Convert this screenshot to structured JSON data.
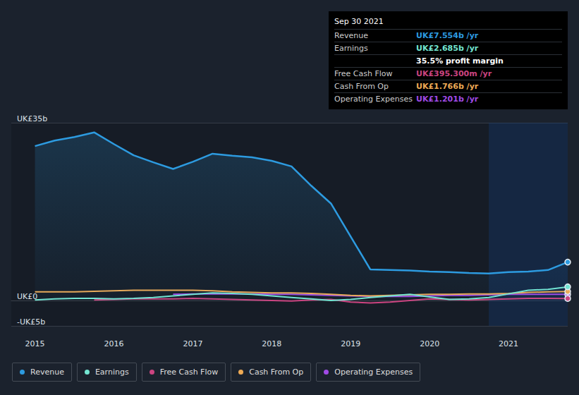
{
  "chart_data": {
    "type": "line",
    "x": [
      2015,
      2015.25,
      2015.5,
      2015.75,
      2016,
      2016.25,
      2016.5,
      2016.75,
      2017,
      2017.25,
      2017.5,
      2017.75,
      2018,
      2018.25,
      2018.5,
      2018.75,
      2019,
      2019.25,
      2019.5,
      2019.75,
      2020,
      2020.25,
      2020.5,
      2020.75,
      2021,
      2021.25,
      2021.5,
      2021.75
    ],
    "xlim": [
      2014.7,
      2021.75
    ],
    "xticks": [
      2015,
      2016,
      2017,
      2018,
      2019,
      2020,
      2021
    ],
    "ylim": [
      -5,
      35
    ],
    "yticks": [
      {
        "value": -5,
        "label": "-UK£5b"
      },
      {
        "value": 0,
        "label": "UK£0"
      },
      {
        "value": 35,
        "label": "UK£35b"
      }
    ],
    "grid": true,
    "legend": "bottom",
    "shaded_range": [
      2020.75,
      2021.75
    ],
    "series": [
      {
        "name": "Revenue",
        "type": "area",
        "color": "#2d9be0",
        "values": [
          30.4,
          31.5,
          32.2,
          33.1,
          30.8,
          28.6,
          27.2,
          25.9,
          27.3,
          28.9,
          28.5,
          28.2,
          27.5,
          26.4,
          22.6,
          19.1,
          12.6,
          6.1,
          6.0,
          5.9,
          5.7,
          5.6,
          5.4,
          5.3,
          5.6,
          5.7,
          6.0,
          7.554
        ]
      },
      {
        "name": "Earnings",
        "type": "line",
        "color": "#74e6d2",
        "values": [
          0.1,
          0.3,
          0.4,
          0.4,
          0.3,
          0.4,
          0.6,
          0.9,
          1.2,
          1.5,
          1.4,
          1.2,
          0.9,
          0.6,
          0.3,
          0.0,
          0.2,
          0.6,
          0.9,
          1.2,
          0.7,
          0.2,
          0.3,
          0.6,
          1.3,
          2.0,
          2.2,
          2.685
        ]
      },
      {
        "name": "Free Cash Flow",
        "type": "line",
        "color": "#cc4480",
        "values": [
          null,
          null,
          null,
          0.1,
          0.2,
          0.3,
          0.3,
          0.3,
          0.4,
          0.3,
          0.2,
          0.1,
          0.0,
          -0.1,
          0.1,
          0.2,
          -0.3,
          -0.5,
          -0.3,
          0.0,
          0.3,
          0.2,
          0.1,
          0.2,
          0.3,
          0.4,
          0.4,
          0.395
        ]
      },
      {
        "name": "Cash From Op",
        "type": "line",
        "color": "#eeaa55",
        "values": [
          1.7,
          1.7,
          1.7,
          1.8,
          1.9,
          2.0,
          2.0,
          2.0,
          2.0,
          1.9,
          1.7,
          1.6,
          1.5,
          1.5,
          1.4,
          1.2,
          1.0,
          0.9,
          1.0,
          1.1,
          1.2,
          1.2,
          1.3,
          1.3,
          1.4,
          1.6,
          1.7,
          1.766
        ]
      },
      {
        "name": "Operating Expenses",
        "type": "line",
        "color": "#a04ae6",
        "values": [
          null,
          null,
          null,
          null,
          null,
          null,
          null,
          1.2,
          1.3,
          1.3,
          1.3,
          1.3,
          1.2,
          1.2,
          1.1,
          1.0,
          0.9,
          0.8,
          0.8,
          0.8,
          0.9,
          1.0,
          1.0,
          1.1,
          1.2,
          1.2,
          1.2,
          1.201
        ]
      }
    ],
    "annotation": {
      "title": "Sep 30 2021",
      "rows": [
        {
          "label": "Revenue",
          "value": "UK£7.554b /yr"
        },
        {
          "label": "Earnings",
          "value": "UK£2.685b /yr"
        },
        {
          "value": "35.5% profit margin"
        },
        {
          "label": "Free Cash Flow",
          "value": "UK£395.300m /yr"
        },
        {
          "label": "Cash From Op",
          "value": "UK£1.766b /yr"
        },
        {
          "label": "Operating Expenses",
          "value": "UK£1.201b /yr"
        }
      ]
    }
  }
}
